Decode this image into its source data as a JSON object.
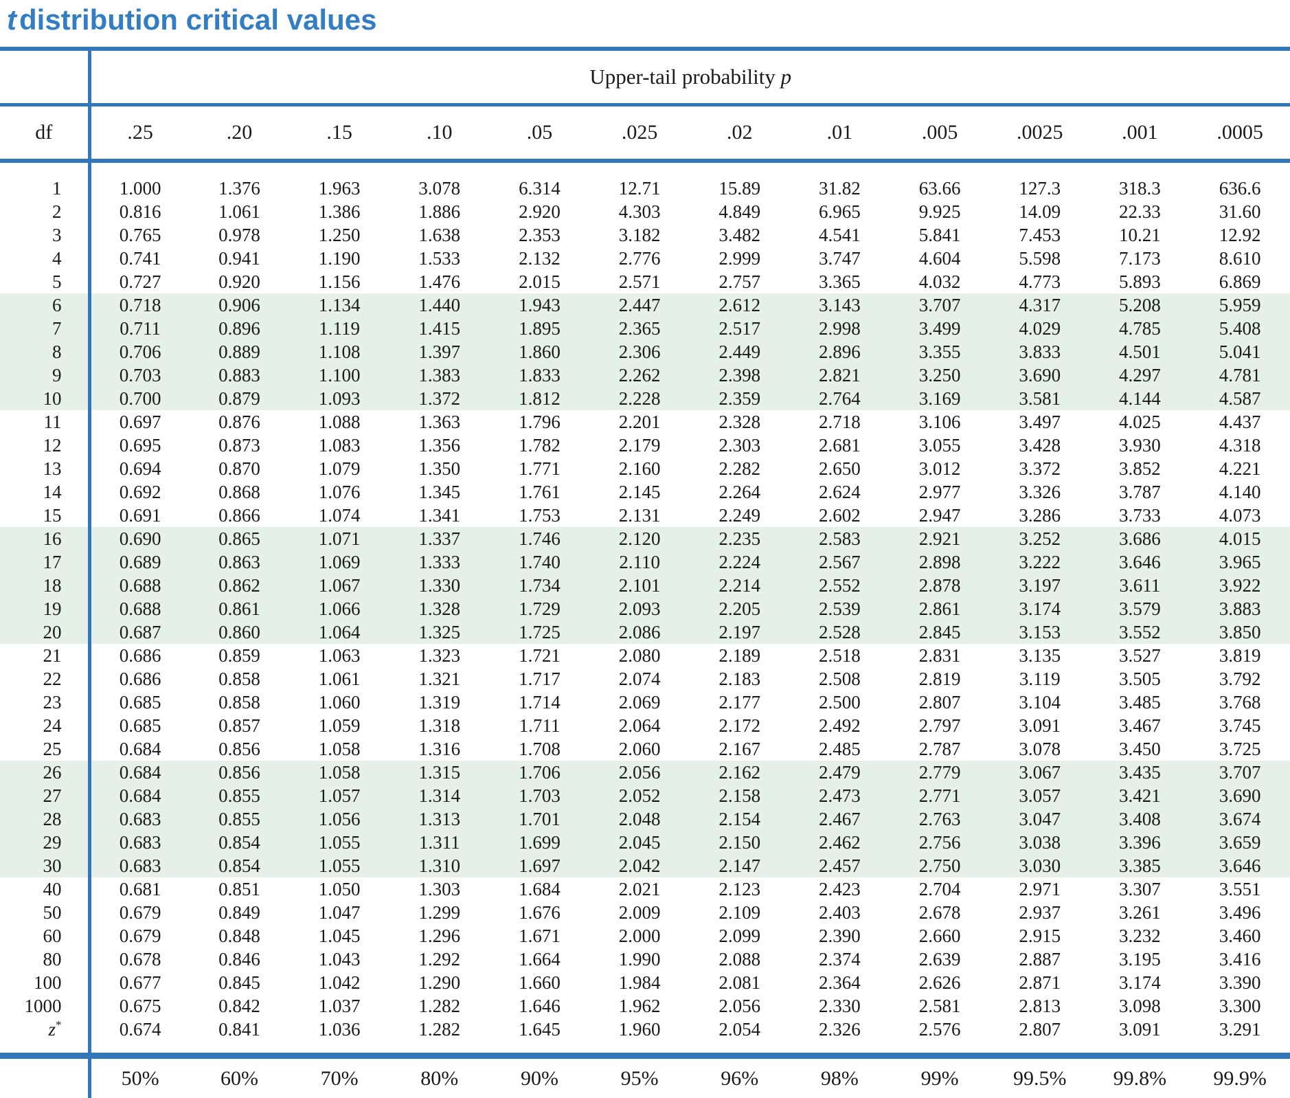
{
  "title": {
    "prefix_italic": "t",
    "rest": "distribution critical values"
  },
  "table": {
    "upper_tail_header": {
      "text": "Upper-tail probability ",
      "symbol": "p"
    },
    "df_header": "df",
    "p_columns": [
      ".25",
      ".20",
      ".15",
      ".10",
      ".05",
      ".025",
      ".02",
      ".01",
      ".005",
      ".0025",
      ".001",
      ".0005"
    ],
    "rows": [
      {
        "df": "1",
        "values": [
          "1.000",
          "1.376",
          "1.963",
          "3.078",
          "6.314",
          "12.71",
          "15.89",
          "31.82",
          "63.66",
          "127.3",
          "318.3",
          "636.6"
        ]
      },
      {
        "df": "2",
        "values": [
          "0.816",
          "1.061",
          "1.386",
          "1.886",
          "2.920",
          "4.303",
          "4.849",
          "6.965",
          "9.925",
          "14.09",
          "22.33",
          "31.60"
        ]
      },
      {
        "df": "3",
        "values": [
          "0.765",
          "0.978",
          "1.250",
          "1.638",
          "2.353",
          "3.182",
          "3.482",
          "4.541",
          "5.841",
          "7.453",
          "10.21",
          "12.92"
        ]
      },
      {
        "df": "4",
        "values": [
          "0.741",
          "0.941",
          "1.190",
          "1.533",
          "2.132",
          "2.776",
          "2.999",
          "3.747",
          "4.604",
          "5.598",
          "7.173",
          "8.610"
        ]
      },
      {
        "df": "5",
        "values": [
          "0.727",
          "0.920",
          "1.156",
          "1.476",
          "2.015",
          "2.571",
          "2.757",
          "3.365",
          "4.032",
          "4.773",
          "5.893",
          "6.869"
        ]
      },
      {
        "df": "6",
        "values": [
          "0.718",
          "0.906",
          "1.134",
          "1.440",
          "1.943",
          "2.447",
          "2.612",
          "3.143",
          "3.707",
          "4.317",
          "5.208",
          "5.959"
        ]
      },
      {
        "df": "7",
        "values": [
          "0.711",
          "0.896",
          "1.119",
          "1.415",
          "1.895",
          "2.365",
          "2.517",
          "2.998",
          "3.499",
          "4.029",
          "4.785",
          "5.408"
        ]
      },
      {
        "df": "8",
        "values": [
          "0.706",
          "0.889",
          "1.108",
          "1.397",
          "1.860",
          "2.306",
          "2.449",
          "2.896",
          "3.355",
          "3.833",
          "4.501",
          "5.041"
        ]
      },
      {
        "df": "9",
        "values": [
          "0.703",
          "0.883",
          "1.100",
          "1.383",
          "1.833",
          "2.262",
          "2.398",
          "2.821",
          "3.250",
          "3.690",
          "4.297",
          "4.781"
        ]
      },
      {
        "df": "10",
        "values": [
          "0.700",
          "0.879",
          "1.093",
          "1.372",
          "1.812",
          "2.228",
          "2.359",
          "2.764",
          "3.169",
          "3.581",
          "4.144",
          "4.587"
        ]
      },
      {
        "df": "11",
        "values": [
          "0.697",
          "0.876",
          "1.088",
          "1.363",
          "1.796",
          "2.201",
          "2.328",
          "2.718",
          "3.106",
          "3.497",
          "4.025",
          "4.437"
        ]
      },
      {
        "df": "12",
        "values": [
          "0.695",
          "0.873",
          "1.083",
          "1.356",
          "1.782",
          "2.179",
          "2.303",
          "2.681",
          "3.055",
          "3.428",
          "3.930",
          "4.318"
        ]
      },
      {
        "df": "13",
        "values": [
          "0.694",
          "0.870",
          "1.079",
          "1.350",
          "1.771",
          "2.160",
          "2.282",
          "2.650",
          "3.012",
          "3.372",
          "3.852",
          "4.221"
        ]
      },
      {
        "df": "14",
        "values": [
          "0.692",
          "0.868",
          "1.076",
          "1.345",
          "1.761",
          "2.145",
          "2.264",
          "2.624",
          "2.977",
          "3.326",
          "3.787",
          "4.140"
        ]
      },
      {
        "df": "15",
        "values": [
          "0.691",
          "0.866",
          "1.074",
          "1.341",
          "1.753",
          "2.131",
          "2.249",
          "2.602",
          "2.947",
          "3.286",
          "3.733",
          "4.073"
        ]
      },
      {
        "df": "16",
        "values": [
          "0.690",
          "0.865",
          "1.071",
          "1.337",
          "1.746",
          "2.120",
          "2.235",
          "2.583",
          "2.921",
          "3.252",
          "3.686",
          "4.015"
        ]
      },
      {
        "df": "17",
        "values": [
          "0.689",
          "0.863",
          "1.069",
          "1.333",
          "1.740",
          "2.110",
          "2.224",
          "2.567",
          "2.898",
          "3.222",
          "3.646",
          "3.965"
        ]
      },
      {
        "df": "18",
        "values": [
          "0.688",
          "0.862",
          "1.067",
          "1.330",
          "1.734",
          "2.101",
          "2.214",
          "2.552",
          "2.878",
          "3.197",
          "3.611",
          "3.922"
        ]
      },
      {
        "df": "19",
        "values": [
          "0.688",
          "0.861",
          "1.066",
          "1.328",
          "1.729",
          "2.093",
          "2.205",
          "2.539",
          "2.861",
          "3.174",
          "3.579",
          "3.883"
        ]
      },
      {
        "df": "20",
        "values": [
          "0.687",
          "0.860",
          "1.064",
          "1.325",
          "1.725",
          "2.086",
          "2.197",
          "2.528",
          "2.845",
          "3.153",
          "3.552",
          "3.850"
        ]
      },
      {
        "df": "21",
        "values": [
          "0.686",
          "0.859",
          "1.063",
          "1.323",
          "1.721",
          "2.080",
          "2.189",
          "2.518",
          "2.831",
          "3.135",
          "3.527",
          "3.819"
        ]
      },
      {
        "df": "22",
        "values": [
          "0.686",
          "0.858",
          "1.061",
          "1.321",
          "1.717",
          "2.074",
          "2.183",
          "2.508",
          "2.819",
          "3.119",
          "3.505",
          "3.792"
        ]
      },
      {
        "df": "23",
        "values": [
          "0.685",
          "0.858",
          "1.060",
          "1.319",
          "1.714",
          "2.069",
          "2.177",
          "2.500",
          "2.807",
          "3.104",
          "3.485",
          "3.768"
        ]
      },
      {
        "df": "24",
        "values": [
          "0.685",
          "0.857",
          "1.059",
          "1.318",
          "1.711",
          "2.064",
          "2.172",
          "2.492",
          "2.797",
          "3.091",
          "3.467",
          "3.745"
        ]
      },
      {
        "df": "25",
        "values": [
          "0.684",
          "0.856",
          "1.058",
          "1.316",
          "1.708",
          "2.060",
          "2.167",
          "2.485",
          "2.787",
          "3.078",
          "3.450",
          "3.725"
        ]
      },
      {
        "df": "26",
        "values": [
          "0.684",
          "0.856",
          "1.058",
          "1.315",
          "1.706",
          "2.056",
          "2.162",
          "2.479",
          "2.779",
          "3.067",
          "3.435",
          "3.707"
        ]
      },
      {
        "df": "27",
        "values": [
          "0.684",
          "0.855",
          "1.057",
          "1.314",
          "1.703",
          "2.052",
          "2.158",
          "2.473",
          "2.771",
          "3.057",
          "3.421",
          "3.690"
        ]
      },
      {
        "df": "28",
        "values": [
          "0.683",
          "0.855",
          "1.056",
          "1.313",
          "1.701",
          "2.048",
          "2.154",
          "2.467",
          "2.763",
          "3.047",
          "3.408",
          "3.674"
        ]
      },
      {
        "df": "29",
        "values": [
          "0.683",
          "0.854",
          "1.055",
          "1.311",
          "1.699",
          "2.045",
          "2.150",
          "2.462",
          "2.756",
          "3.038",
          "3.396",
          "3.659"
        ]
      },
      {
        "df": "30",
        "values": [
          "0.683",
          "0.854",
          "1.055",
          "1.310",
          "1.697",
          "2.042",
          "2.147",
          "2.457",
          "2.750",
          "3.030",
          "3.385",
          "3.646"
        ]
      },
      {
        "df": "40",
        "values": [
          "0.681",
          "0.851",
          "1.050",
          "1.303",
          "1.684",
          "2.021",
          "2.123",
          "2.423",
          "2.704",
          "2.971",
          "3.307",
          "3.551"
        ]
      },
      {
        "df": "50",
        "values": [
          "0.679",
          "0.849",
          "1.047",
          "1.299",
          "1.676",
          "2.009",
          "2.109",
          "2.403",
          "2.678",
          "2.937",
          "3.261",
          "3.496"
        ]
      },
      {
        "df": "60",
        "values": [
          "0.679",
          "0.848",
          "1.045",
          "1.296",
          "1.671",
          "2.000",
          "2.099",
          "2.390",
          "2.660",
          "2.915",
          "3.232",
          "3.460"
        ]
      },
      {
        "df": "80",
        "values": [
          "0.678",
          "0.846",
          "1.043",
          "1.292",
          "1.664",
          "1.990",
          "2.088",
          "2.374",
          "2.639",
          "2.887",
          "3.195",
          "3.416"
        ]
      },
      {
        "df": "100",
        "values": [
          "0.677",
          "0.845",
          "1.042",
          "1.290",
          "1.660",
          "1.984",
          "2.081",
          "2.364",
          "2.626",
          "2.871",
          "3.174",
          "3.390"
        ]
      },
      {
        "df": "1000",
        "values": [
          "0.675",
          "0.842",
          "1.037",
          "1.282",
          "1.646",
          "1.962",
          "2.056",
          "2.330",
          "2.581",
          "2.813",
          "3.098",
          "3.300"
        ]
      },
      {
        "df": "z*",
        "values": [
          "0.674",
          "0.841",
          "1.036",
          "1.282",
          "1.645",
          "1.960",
          "2.054",
          "2.326",
          "2.576",
          "2.807",
          "3.091",
          "3.291"
        ]
      }
    ],
    "confidence_percents": [
      "50%",
      "60%",
      "70%",
      "80%",
      "90%",
      "95%",
      "96%",
      "98%",
      "99%",
      "99.5%",
      "99.8%",
      "99.9%"
    ]
  },
  "colors": {
    "accent_blue": "#3377bb",
    "title_blue": "#337dc4",
    "row_band_green": "#e5f0e8"
  }
}
